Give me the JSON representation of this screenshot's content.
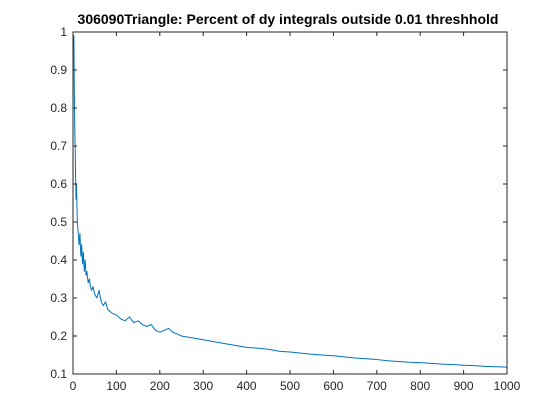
{
  "chart_data": {
    "type": "line",
    "title": "306090Triangle: Percent of dy integrals outside 0.01 threshhold",
    "xlabel": "",
    "ylabel": "",
    "xlim": [
      0,
      1000
    ],
    "ylim": [
      0.1,
      1
    ],
    "xticks": [
      0,
      100,
      200,
      300,
      400,
      500,
      600,
      700,
      800,
      900,
      1000
    ],
    "yticks": [
      0.1,
      0.2,
      0.3,
      0.4,
      0.5,
      0.6,
      0.7,
      0.8,
      0.9,
      1
    ],
    "xtick_labels": [
      "0",
      "100",
      "200",
      "300",
      "400",
      "500",
      "600",
      "700",
      "800",
      "900",
      "1000"
    ],
    "ytick_labels": [
      "0.1",
      "0.2",
      "0.3",
      "0.4",
      "0.5",
      "0.6",
      "0.7",
      "0.8",
      "0.9",
      "1"
    ],
    "grid": false,
    "line_color": "#0072bd",
    "series": [
      {
        "x": [
          1,
          2,
          3,
          4,
          5,
          6,
          7,
          8,
          10,
          12,
          14,
          16,
          18,
          20,
          22,
          24,
          26,
          28,
          30,
          32,
          35,
          38,
          40,
          43,
          46,
          50,
          55,
          60,
          65,
          70,
          75,
          80,
          90,
          100,
          110,
          120,
          130,
          140,
          150,
          160,
          170,
          180,
          190,
          200,
          210,
          220,
          230,
          240,
          250,
          275,
          300,
          325,
          350,
          375,
          400,
          425,
          450,
          475,
          500,
          525,
          550,
          575,
          600,
          625,
          650,
          675,
          700,
          725,
          750,
          775,
          800,
          825,
          850,
          875,
          900,
          925,
          950,
          975,
          1000
        ],
        "y": [
          0.95,
          0.99,
          0.85,
          0.75,
          0.7,
          0.62,
          0.56,
          0.6,
          0.5,
          0.47,
          0.44,
          0.47,
          0.41,
          0.44,
          0.39,
          0.42,
          0.37,
          0.4,
          0.36,
          0.37,
          0.34,
          0.35,
          0.33,
          0.32,
          0.33,
          0.31,
          0.3,
          0.32,
          0.29,
          0.28,
          0.29,
          0.27,
          0.26,
          0.255,
          0.245,
          0.24,
          0.25,
          0.235,
          0.24,
          0.23,
          0.225,
          0.23,
          0.215,
          0.21,
          0.215,
          0.22,
          0.21,
          0.205,
          0.2,
          0.195,
          0.19,
          0.185,
          0.18,
          0.175,
          0.17,
          0.168,
          0.165,
          0.16,
          0.158,
          0.155,
          0.152,
          0.15,
          0.148,
          0.145,
          0.142,
          0.14,
          0.138,
          0.135,
          0.133,
          0.131,
          0.13,
          0.128,
          0.126,
          0.125,
          0.123,
          0.122,
          0.12,
          0.119,
          0.118
        ]
      }
    ]
  }
}
